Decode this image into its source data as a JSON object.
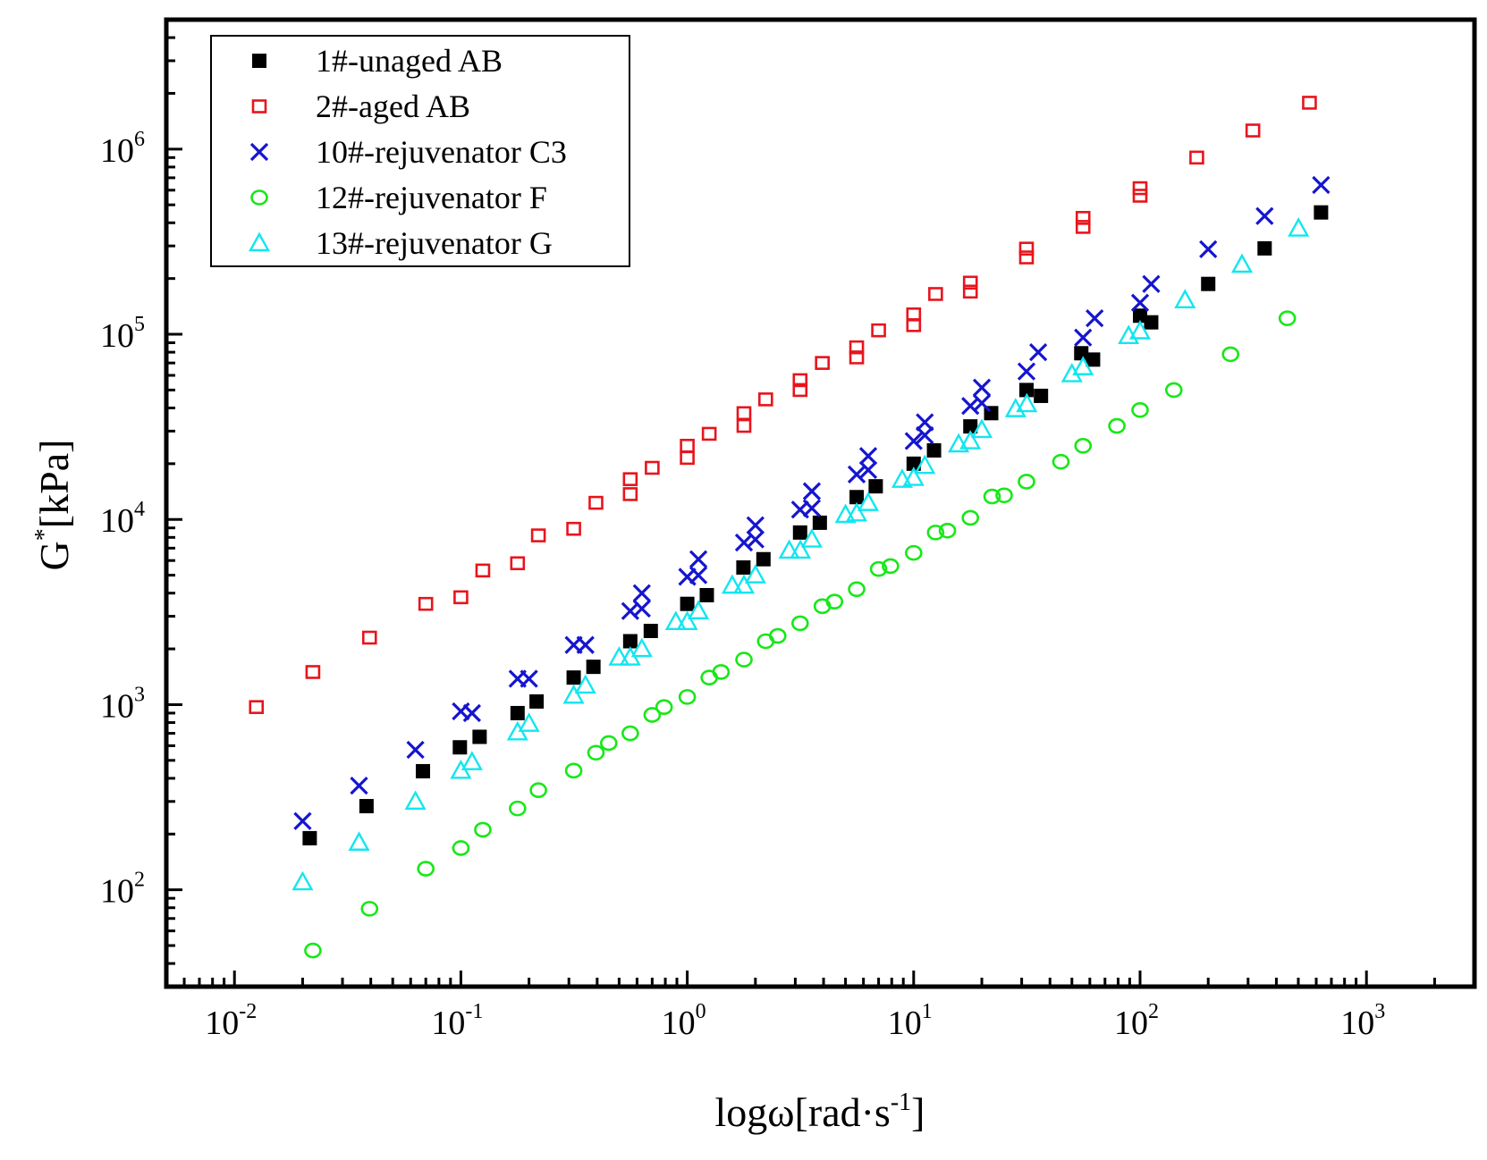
{
  "chart_data": {
    "type": "scatter",
    "xscale": "log",
    "yscale": "log",
    "xlabel": "logω[rad·s",
    "xlabel_sup": "-1",
    "xlabel_end": "]",
    "ylabel": "G",
    "ylabel_sup": "*",
    "ylabel_end": "[kPa]",
    "xlim": [
      0.005,
      3000
    ],
    "ylim": [
      30,
      5000000
    ],
    "legend_position": "top-left",
    "x_ticks": [
      {
        "value": 0.01,
        "base": "10",
        "exp": "-2"
      },
      {
        "value": 0.1,
        "base": "10",
        "exp": "-1"
      },
      {
        "value": 1,
        "base": "10",
        "exp": "0"
      },
      {
        "value": 10,
        "base": "10",
        "exp": "1"
      },
      {
        "value": 100,
        "base": "10",
        "exp": "2"
      },
      {
        "value": 1000,
        "base": "10",
        "exp": "3"
      }
    ],
    "y_ticks": [
      {
        "value": 100,
        "base": "10",
        "exp": "2"
      },
      {
        "value": 1000,
        "base": "10",
        "exp": "3"
      },
      {
        "value": 10000,
        "base": "10",
        "exp": "4"
      },
      {
        "value": 100000,
        "base": "10",
        "exp": "5"
      },
      {
        "value": 1000000,
        "base": "10",
        "exp": "6"
      }
    ],
    "series": [
      {
        "name": "1#-unaged AB",
        "marker": "filled-square",
        "color": "#000000",
        "points": [
          [
            0.0215,
            190
          ],
          [
            0.0383,
            283
          ],
          [
            0.068,
            437
          ],
          [
            0.099,
            588
          ],
          [
            0.121,
            670
          ],
          [
            0.178,
            900
          ],
          [
            0.216,
            1040
          ],
          [
            0.315,
            1400
          ],
          [
            0.385,
            1600
          ],
          [
            0.56,
            2200
          ],
          [
            0.69,
            2500
          ],
          [
            1.0,
            3500
          ],
          [
            1.22,
            3900
          ],
          [
            1.77,
            5500
          ],
          [
            2.17,
            6100
          ],
          [
            3.15,
            8500
          ],
          [
            3.85,
            9600
          ],
          [
            5.6,
            13200
          ],
          [
            6.8,
            15100
          ],
          [
            10.0,
            20000
          ],
          [
            12.3,
            23600
          ],
          [
            17.8,
            31800
          ],
          [
            22.0,
            37500
          ],
          [
            31.5,
            50000
          ],
          [
            36.5,
            46500
          ],
          [
            55.0,
            79000
          ],
          [
            62.0,
            73000
          ],
          [
            100,
            126000
          ],
          [
            112,
            116000
          ],
          [
            200,
            187000
          ],
          [
            355,
            291000
          ],
          [
            630,
            455000
          ]
        ]
      },
      {
        "name": "2#-aged AB",
        "marker": "open-square",
        "color": "#e8141c",
        "points": [
          [
            0.0125,
            970
          ],
          [
            0.0222,
            1500
          ],
          [
            0.0395,
            2300
          ],
          [
            0.07,
            3500
          ],
          [
            0.1,
            3800
          ],
          [
            0.125,
            5300
          ],
          [
            0.178,
            5800
          ],
          [
            0.22,
            8200
          ],
          [
            0.315,
            8900
          ],
          [
            0.395,
            12300
          ],
          [
            0.56,
            13700
          ],
          [
            0.56,
            16500
          ],
          [
            0.7,
            19000
          ],
          [
            1.0,
            21500
          ],
          [
            1.0,
            25000
          ],
          [
            1.25,
            29000
          ],
          [
            1.78,
            32000
          ],
          [
            1.78,
            37500
          ],
          [
            2.22,
            44500
          ],
          [
            3.15,
            50000
          ],
          [
            3.15,
            56500
          ],
          [
            3.95,
            70000
          ],
          [
            5.6,
            75000
          ],
          [
            5.6,
            85000
          ],
          [
            7.0,
            105000
          ],
          [
            10.0,
            112000
          ],
          [
            10.0,
            128000
          ],
          [
            12.5,
            165000
          ],
          [
            17.8,
            170000
          ],
          [
            17.8,
            190000
          ],
          [
            31.5,
            260000
          ],
          [
            31.5,
            290000
          ],
          [
            56.0,
            380000
          ],
          [
            56.0,
            425000
          ],
          [
            100,
            560000
          ],
          [
            100,
            615000
          ],
          [
            178,
            900000
          ],
          [
            315,
            1260000
          ],
          [
            560,
            1780000
          ]
        ]
      },
      {
        "name": "10#-rejuvenator C3",
        "marker": "cross",
        "color": "#1515d0",
        "points": [
          [
            0.02,
            235
          ],
          [
            0.0355,
            365
          ],
          [
            0.063,
            570
          ],
          [
            0.1,
            920
          ],
          [
            0.112,
            900
          ],
          [
            0.178,
            1380
          ],
          [
            0.2,
            1380
          ],
          [
            0.315,
            2100
          ],
          [
            0.355,
            2100
          ],
          [
            0.56,
            3200
          ],
          [
            0.63,
            3300
          ],
          [
            0.63,
            4000
          ],
          [
            1.0,
            4900
          ],
          [
            1.12,
            5000
          ],
          [
            1.12,
            6100
          ],
          [
            1.78,
            7500
          ],
          [
            2.0,
            7800
          ],
          [
            2.0,
            9300
          ],
          [
            3.15,
            11300
          ],
          [
            3.55,
            11500
          ],
          [
            3.55,
            14200
          ],
          [
            5.6,
            17500
          ],
          [
            6.3,
            18500
          ],
          [
            6.3,
            22000
          ],
          [
            10.0,
            26500
          ],
          [
            11.2,
            28500
          ],
          [
            11.2,
            33500
          ],
          [
            17.8,
            41000
          ],
          [
            20.0,
            42500
          ],
          [
            20.0,
            51500
          ],
          [
            31.5,
            63000
          ],
          [
            35.5,
            80000
          ],
          [
            56.0,
            96000
          ],
          [
            63.0,
            122000
          ],
          [
            100,
            148000
          ],
          [
            112,
            187000
          ],
          [
            200,
            288000
          ],
          [
            355,
            435000
          ],
          [
            630,
            640000
          ]
        ]
      },
      {
        "name": "12#-rejuvenator F",
        "marker": "open-circle",
        "color": "#17e817",
        "points": [
          [
            0.0222,
            47
          ],
          [
            0.0395,
            79
          ],
          [
            0.07,
            130
          ],
          [
            0.1,
            168
          ],
          [
            0.125,
            211
          ],
          [
            0.178,
            275
          ],
          [
            0.22,
            345
          ],
          [
            0.315,
            440
          ],
          [
            0.395,
            550
          ],
          [
            0.45,
            620
          ],
          [
            0.56,
            700
          ],
          [
            0.7,
            880
          ],
          [
            0.79,
            970
          ],
          [
            1.0,
            1100
          ],
          [
            1.25,
            1400
          ],
          [
            1.41,
            1500
          ],
          [
            1.78,
            1750
          ],
          [
            2.22,
            2200
          ],
          [
            2.51,
            2350
          ],
          [
            3.15,
            2750
          ],
          [
            3.95,
            3400
          ],
          [
            4.47,
            3600
          ],
          [
            5.6,
            4200
          ],
          [
            7.0,
            5400
          ],
          [
            7.9,
            5600
          ],
          [
            10.0,
            6600
          ],
          [
            12.5,
            8500
          ],
          [
            14.1,
            8700
          ],
          [
            17.8,
            10200
          ],
          [
            22.2,
            13300
          ],
          [
            25.1,
            13500
          ],
          [
            31.5,
            16000
          ],
          [
            44.7,
            20500
          ],
          [
            56.0,
            25000
          ],
          [
            79.0,
            32000
          ],
          [
            100,
            39000
          ],
          [
            141,
            50000
          ],
          [
            251,
            78000
          ],
          [
            447,
            122000
          ]
        ]
      },
      {
        "name": "13#-rejuvenator G",
        "marker": "open-triangle",
        "color": "#12e6f0",
        "points": [
          [
            0.02,
            110
          ],
          [
            0.0355,
            180
          ],
          [
            0.063,
            300
          ],
          [
            0.1,
            440
          ],
          [
            0.112,
            490
          ],
          [
            0.178,
            710
          ],
          [
            0.2,
            790
          ],
          [
            0.315,
            1120
          ],
          [
            0.355,
            1270
          ],
          [
            0.5,
            1800
          ],
          [
            0.56,
            1800
          ],
          [
            0.63,
            2000
          ],
          [
            0.89,
            2800
          ],
          [
            1.0,
            2800
          ],
          [
            1.12,
            3200
          ],
          [
            1.58,
            4400
          ],
          [
            1.78,
            4400
          ],
          [
            2.0,
            5000
          ],
          [
            2.82,
            6800
          ],
          [
            3.16,
            6800
          ],
          [
            3.55,
            7800
          ],
          [
            5.0,
            10600
          ],
          [
            5.6,
            10800
          ],
          [
            6.3,
            12300
          ],
          [
            8.9,
            16400
          ],
          [
            10.0,
            16800
          ],
          [
            11.2,
            19500
          ],
          [
            15.8,
            25500
          ],
          [
            17.8,
            26500
          ],
          [
            20.0,
            30500
          ],
          [
            28.2,
            39500
          ],
          [
            31.6,
            42000
          ],
          [
            50.0,
            61000
          ],
          [
            56.0,
            66500
          ],
          [
            89.0,
            98000
          ],
          [
            100,
            104000
          ],
          [
            158,
            153000
          ],
          [
            282,
            238000
          ],
          [
            501,
            373000
          ]
        ]
      }
    ]
  }
}
